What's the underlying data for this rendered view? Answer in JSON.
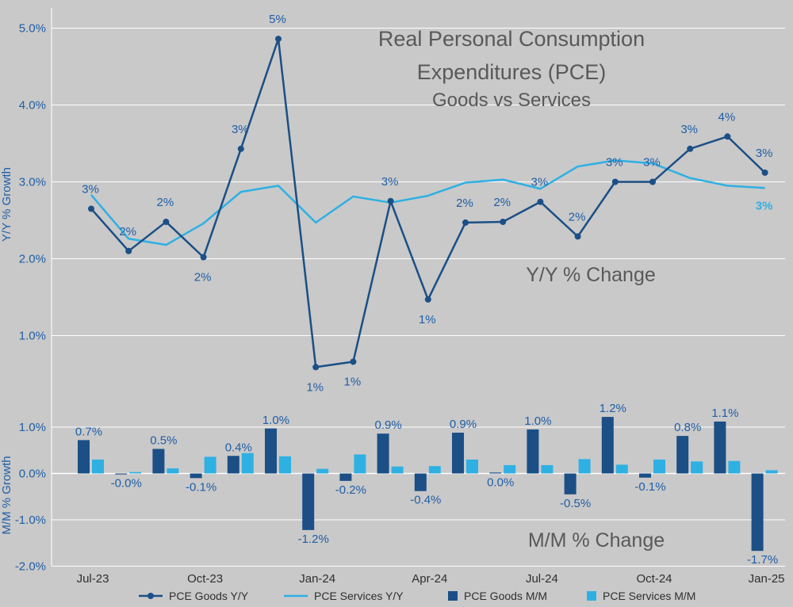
{
  "colors": {
    "background": "#c9c9c9",
    "goods": "#1b4f86",
    "services": "#2fb0e3",
    "grid": "#ffffff",
    "axis_text": "#1f5ea6",
    "title_text": "#595959"
  },
  "titles": {
    "line1": "Real Personal Consumption",
    "line2": "Expenditures (PCE)",
    "line3": "Goods vs Services",
    "yy_caption": "Y/Y % Change",
    "mm_caption": "M/M % Change"
  },
  "chart_data": [
    {
      "type": "line",
      "name": "yy",
      "title": "Real Personal Consumption Expenditures (PCE) Goods vs Services",
      "ylabel": "Y/Y % Growth",
      "ylim": [
        0.5,
        5.2
      ],
      "yticks": [
        1.0,
        2.0,
        3.0,
        4.0,
        5.0
      ],
      "ytick_labels": [
        "1.0%",
        "2.0%",
        "3.0%",
        "4.0%",
        "5.0%"
      ],
      "categories": [
        "Jul-23",
        "Aug-23",
        "Sep-23",
        "Oct-23",
        "Nov-23",
        "Dec-23",
        "Jan-24",
        "Feb-24",
        "Mar-24",
        "Apr-24",
        "May-24",
        "Jun-24",
        "Jul-24",
        "Aug-24",
        "Sep-24",
        "Oct-24",
        "Nov-24",
        "Dec-24",
        "Jan-25"
      ],
      "series": [
        {
          "name": "PCE Goods Y/Y",
          "values": [
            2.65,
            2.1,
            2.48,
            2.02,
            3.43,
            4.86,
            0.59,
            0.66,
            2.75,
            1.47,
            2.47,
            2.48,
            2.74,
            2.29,
            3.0,
            3.0,
            3.43,
            3.59,
            3.12
          ],
          "labels": [
            "3%",
            "2%",
            "2%",
            "2%",
            "3%",
            "5%",
            "1%",
            "1%",
            "3%",
            "1%",
            "2%",
            "2%",
            "3%",
            "2%",
            "3%",
            "3%",
            "3%",
            "4%",
            "3%"
          ]
        },
        {
          "name": "PCE Services Y/Y",
          "values": [
            2.83,
            2.26,
            2.18,
            2.46,
            2.87,
            2.95,
            2.47,
            2.81,
            2.73,
            2.82,
            2.99,
            3.03,
            2.91,
            3.2,
            3.28,
            3.24,
            3.05,
            2.95,
            2.92
          ],
          "end_label": "3%"
        }
      ]
    },
    {
      "type": "bar",
      "name": "mm",
      "ylabel": "M/M % Growth",
      "ylim": [
        -2.0,
        1.2
      ],
      "yticks": [
        -2.0,
        -1.0,
        0.0,
        1.0
      ],
      "ytick_labels": [
        "-2.0%",
        "-1.0%",
        "0.0%",
        "1.0%"
      ],
      "categories": [
        "Jul-23",
        "Aug-23",
        "Sep-23",
        "Oct-23",
        "Nov-23",
        "Dec-23",
        "Jan-24",
        "Feb-24",
        "Mar-24",
        "Apr-24",
        "May-24",
        "Jun-24",
        "Jul-24",
        "Aug-24",
        "Sep-24",
        "Oct-24",
        "Nov-24",
        "Dec-24",
        "Jan-25"
      ],
      "xtick_labels": [
        "Jul-23",
        "Oct-23",
        "Jan-24",
        "Apr-24",
        "Jul-24",
        "Oct-24",
        "Jan-25"
      ],
      "series": [
        {
          "name": "PCE Goods M/M",
          "values": [
            0.72,
            -0.02,
            0.53,
            -0.1,
            0.38,
            0.97,
            -1.22,
            -0.16,
            0.86,
            -0.38,
            0.88,
            0.02,
            0.95,
            -0.45,
            1.22,
            -0.09,
            0.81,
            1.12,
            -1.67
          ],
          "labels": [
            "0.7%",
            "-0.0%",
            "0.5%",
            "-0.1%",
            "0.4%",
            "1.0%",
            "-1.2%",
            "-0.2%",
            "0.9%",
            "-0.4%",
            "0.9%",
            "0.0%",
            "1.0%",
            "-0.5%",
            "1.2%",
            "-0.1%",
            "0.8%",
            "1.1%",
            "-1.7%"
          ]
        },
        {
          "name": "PCE Services M/M",
          "values": [
            0.3,
            0.03,
            0.11,
            0.36,
            0.44,
            0.37,
            0.1,
            0.41,
            0.15,
            0.16,
            0.3,
            0.18,
            0.18,
            0.31,
            0.19,
            0.3,
            0.26,
            0.27,
            0.07
          ]
        }
      ]
    }
  ],
  "legend": [
    {
      "name": "PCE Goods Y/Y",
      "kind": "line-marker"
    },
    {
      "name": "PCE Services Y/Y",
      "kind": "line"
    },
    {
      "name": "PCE Goods M/M",
      "kind": "box"
    },
    {
      "name": "PCE Services M/M",
      "kind": "box"
    }
  ]
}
